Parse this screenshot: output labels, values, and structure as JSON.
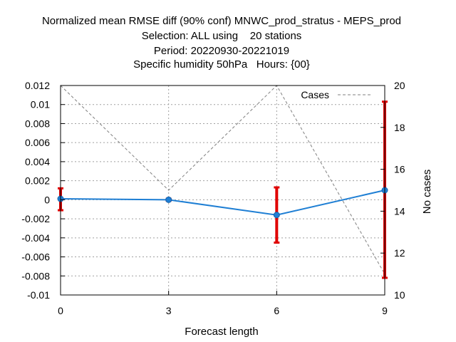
{
  "chart_data": {
    "type": "line",
    "title_lines": [
      "Normalized mean RMSE diff (90% conf) MNWC_prod_stratus - MEPS_prod",
      "Selection: ALL using    20 stations",
      "Period: 20220930-20221019",
      "Specific humidity 50hPa   Hours: {00}"
    ],
    "xlabel": "Forecast length",
    "ylabel": "",
    "y2label": "No cases",
    "x": [
      0,
      3,
      6,
      9
    ],
    "xlim": [
      0,
      9
    ],
    "ylim": [
      -0.01,
      0.012
    ],
    "y2lim": [
      10,
      20
    ],
    "x_ticks": [
      "0",
      "3",
      "6",
      "9"
    ],
    "y_ticks": [
      "-0.01",
      "-0.008",
      "-0.006",
      "-0.004",
      "-0.002",
      "0",
      "0.002",
      "0.004",
      "0.006",
      "0.008",
      "0.01",
      "0.012"
    ],
    "y2_ticks": [
      "10",
      "12",
      "14",
      "16",
      "18",
      "20"
    ],
    "grid": true,
    "legend_position": "top-right",
    "series": [
      {
        "axis": "left",
        "color": "#1f7fd4",
        "values": [
          0.0001,
          0.0,
          -0.0016,
          0.001
        ],
        "error_low": [
          -0.0011,
          -0.0001,
          -0.0045,
          -0.0082
        ],
        "error_high": [
          0.0012,
          0.0001,
          0.0013,
          0.0103
        ],
        "error_color": "#e00000"
      },
      {
        "name": "Cases",
        "axis": "right",
        "color": "#808080",
        "dashed": true,
        "values": [
          20,
          15,
          20,
          11
        ]
      }
    ]
  }
}
